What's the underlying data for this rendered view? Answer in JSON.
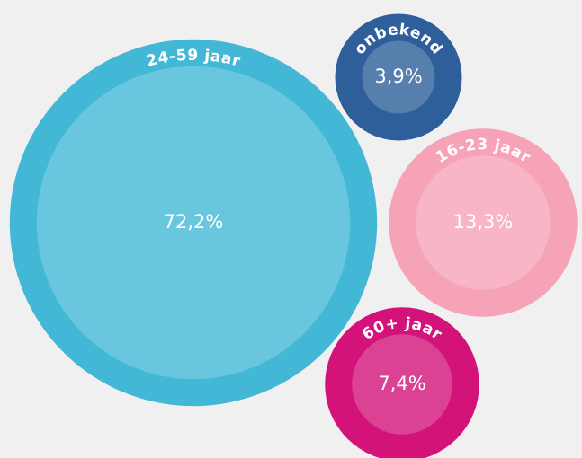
{
  "chart_data": {
    "type": "bubble",
    "categories": [
      "24-59 jaar",
      "onbekend",
      "16-23 jaar",
      "60+ jaar"
    ],
    "values": [
      72.2,
      3.9,
      13.3,
      7.4
    ],
    "value_labels": [
      "72,2%",
      "3,9%",
      "13,3%",
      "7,4%"
    ],
    "colors": [
      "#43b8d6",
      "#2e5f9a",
      "#f6a3b7",
      "#d4137a"
    ]
  }
}
